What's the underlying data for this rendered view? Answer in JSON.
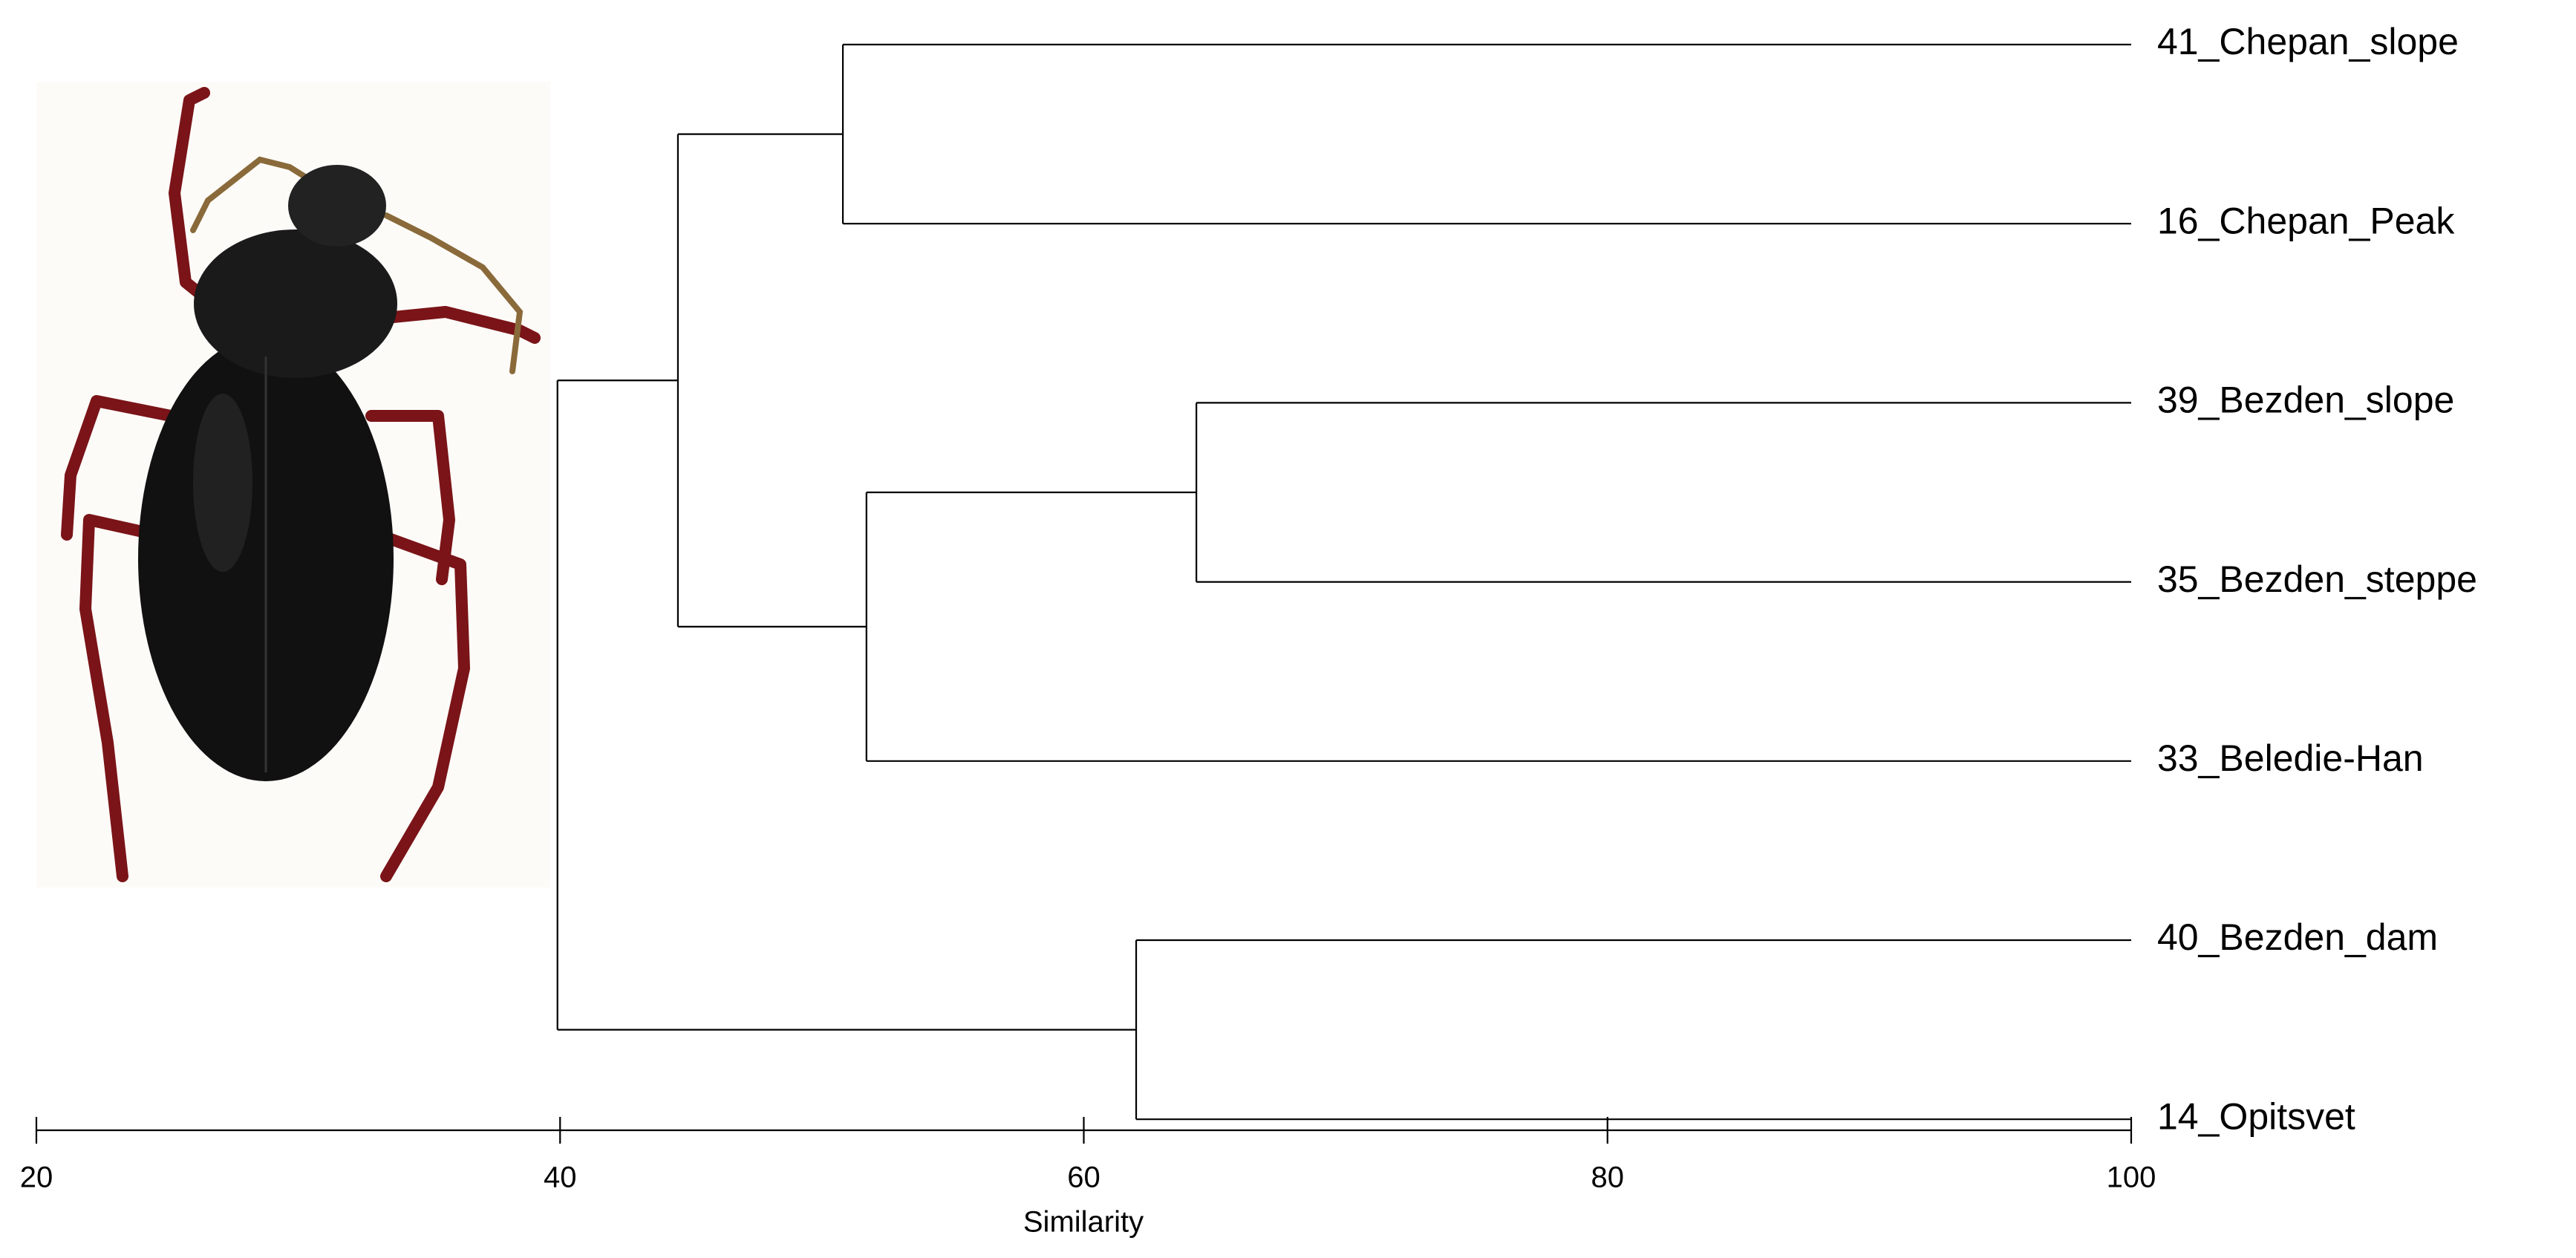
{
  "chart_data": {
    "type": "dendrogram",
    "xlabel": "Similarity",
    "xlim": [
      20,
      100
    ],
    "xticks": [
      20,
      40,
      60,
      80,
      100
    ],
    "color": "#000000",
    "tree": {
      "value": 39.9,
      "children": [
        {
          "value": 44.5,
          "children": [
            {
              "value": 50.8,
              "children": [
                {
                  "label": "41_Chepan_slope"
                },
                {
                  "label": "16_Chepan_Peak"
                }
              ]
            },
            {
              "value": 51.7,
              "children": [
                {
                  "value": 64.3,
                  "children": [
                    {
                      "label": "39_Bezden_slope"
                    },
                    {
                      "label": "35_Bezden_steppe"
                    }
                  ]
                },
                {
                  "label": "33_Beledie-Han"
                }
              ]
            }
          ]
        },
        {
          "value": 62.0,
          "children": [
            {
              "label": "40_Bezden_dam"
            },
            {
              "label": "14_Opitsvet"
            }
          ]
        }
      ]
    }
  }
}
